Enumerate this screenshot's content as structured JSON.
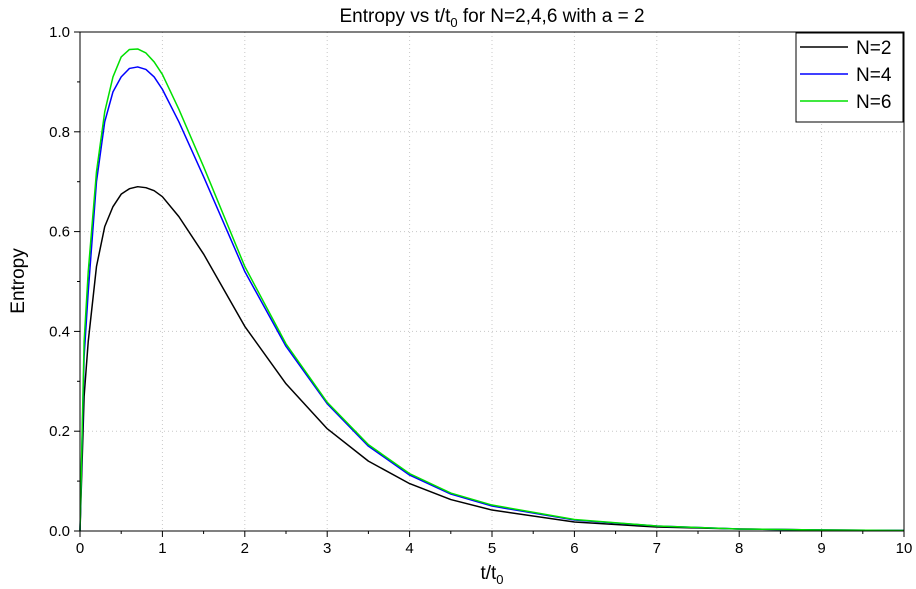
{
  "chart_data": {
    "type": "line",
    "title": {
      "main": "Entropy vs t/t",
      "sub": "0",
      "rest": " for N=2,4,6 with a = 2"
    },
    "xlabel": {
      "main": "t/t",
      "sub": "0"
    },
    "ylabel": "Entropy",
    "xlim": [
      0,
      10
    ],
    "ylim": [
      0,
      1.0
    ],
    "xticks": [
      0,
      1,
      2,
      3,
      4,
      5,
      6,
      7,
      8,
      9,
      10
    ],
    "yticks": [
      0.0,
      0.2,
      0.4,
      0.6,
      0.8,
      1.0
    ],
    "xtick_labels": [
      "0",
      "1",
      "2",
      "3",
      "4",
      "5",
      "6",
      "7",
      "8",
      "9",
      "10"
    ],
    "ytick_labels": [
      "0.0",
      "0.2",
      "0.4",
      "0.6",
      "0.8",
      "1.0"
    ],
    "grid": true,
    "legend_position": "top-right",
    "series": [
      {
        "name": "N=2",
        "color": "#000000",
        "x": [
          0,
          0.05,
          0.1,
          0.2,
          0.3,
          0.4,
          0.5,
          0.6,
          0.7,
          0.8,
          0.9,
          1.0,
          1.2,
          1.5,
          2.0,
          2.5,
          3.0,
          3.5,
          4.0,
          4.5,
          5.0,
          6.0,
          7.0,
          8.0,
          9.0,
          10.0
        ],
        "values": [
          0.0,
          0.27,
          0.38,
          0.53,
          0.61,
          0.65,
          0.675,
          0.686,
          0.69,
          0.688,
          0.682,
          0.67,
          0.63,
          0.555,
          0.41,
          0.295,
          0.205,
          0.14,
          0.095,
          0.063,
          0.042,
          0.018,
          0.008,
          0.004,
          0.002,
          0.001
        ]
      },
      {
        "name": "N=4",
        "color": "#0000ff",
        "x": [
          0,
          0.05,
          0.1,
          0.2,
          0.3,
          0.4,
          0.5,
          0.6,
          0.7,
          0.8,
          0.9,
          1.0,
          1.2,
          1.5,
          2.0,
          2.5,
          3.0,
          3.5,
          4.0,
          4.5,
          5.0,
          6.0,
          7.0,
          8.0,
          9.0,
          10.0
        ],
        "values": [
          0.0,
          0.35,
          0.48,
          0.7,
          0.82,
          0.88,
          0.91,
          0.927,
          0.93,
          0.925,
          0.91,
          0.885,
          0.82,
          0.71,
          0.52,
          0.37,
          0.255,
          0.17,
          0.112,
          0.074,
          0.05,
          0.022,
          0.01,
          0.004,
          0.002,
          0.001
        ]
      },
      {
        "name": "N=6",
        "color": "#00e000",
        "x": [
          0,
          0.05,
          0.1,
          0.2,
          0.3,
          0.4,
          0.5,
          0.6,
          0.7,
          0.8,
          0.9,
          1.0,
          1.2,
          1.5,
          2.0,
          2.5,
          3.0,
          3.5,
          4.0,
          4.5,
          5.0,
          6.0,
          7.0,
          8.0,
          9.0,
          10.0
        ],
        "values": [
          0.0,
          0.38,
          0.52,
          0.72,
          0.84,
          0.91,
          0.95,
          0.965,
          0.966,
          0.958,
          0.94,
          0.915,
          0.845,
          0.73,
          0.53,
          0.375,
          0.258,
          0.173,
          0.115,
          0.076,
          0.052,
          0.023,
          0.01,
          0.004,
          0.002,
          0.001
        ]
      }
    ]
  }
}
